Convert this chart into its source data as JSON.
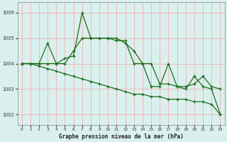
{
  "title": "Graphe pression niveau de la mer (hPa)",
  "bg_color": "#daf0ee",
  "grid_color": "#f0b0b0",
  "line_color": "#1a6e1a",
  "xlim": [
    -0.5,
    23.5
  ],
  "ylim": [
    1001.6,
    1006.4
  ],
  "yticks": [
    1002,
    1003,
    1004,
    1005,
    1006
  ],
  "xticks": [
    0,
    1,
    2,
    3,
    4,
    5,
    6,
    7,
    8,
    9,
    10,
    11,
    12,
    13,
    14,
    15,
    16,
    17,
    18,
    19,
    20,
    21,
    22,
    23
  ],
  "line1_x": [
    0,
    1,
    2,
    3,
    4,
    5,
    6,
    7,
    8,
    9,
    10,
    11,
    12,
    13,
    14,
    15,
    16,
    17,
    18,
    19,
    20,
    21,
    22,
    23
  ],
  "line1_y": [
    1004.0,
    1004.0,
    1004.0,
    1004.0,
    1004.0,
    1004.0,
    1004.5,
    1005.0,
    1005.0,
    1005.0,
    1005.0,
    1005.0,
    1004.8,
    1004.5,
    1004.0,
    1004.0,
    1003.2,
    1003.2,
    1003.1,
    1003.1,
    1003.2,
    1003.5,
    1003.1,
    1003.0
  ],
  "line2_x": [
    0,
    1,
    2,
    3,
    4,
    5,
    6,
    7,
    8,
    9,
    10,
    11,
    12,
    13,
    14,
    15,
    16,
    17,
    18,
    19,
    20,
    21,
    22,
    23
  ],
  "line2_y": [
    1004.0,
    1004.0,
    1003.9,
    1003.8,
    1003.7,
    1003.6,
    1003.5,
    1003.4,
    1003.3,
    1003.2,
    1003.1,
    1003.0,
    1002.9,
    1002.8,
    1002.8,
    1002.7,
    1002.7,
    1002.6,
    1002.6,
    1002.6,
    1002.5,
    1002.5,
    1002.4,
    1002.0
  ],
  "line3_x": [
    0,
    1,
    2,
    3,
    4,
    5,
    6,
    7,
    8,
    9,
    10,
    11,
    12,
    13,
    14,
    15,
    16,
    17,
    18,
    19,
    20,
    21,
    22,
    23
  ],
  "line3_y": [
    1004.0,
    1004.0,
    1004.0,
    1004.8,
    1004.0,
    1004.2,
    1004.3,
    1006.0,
    1005.0,
    1005.0,
    1005.0,
    1004.9,
    1004.9,
    1004.0,
    1004.0,
    1003.1,
    1003.1,
    1004.0,
    1003.1,
    1003.0,
    1003.5,
    1003.1,
    1003.0,
    1002.0
  ]
}
